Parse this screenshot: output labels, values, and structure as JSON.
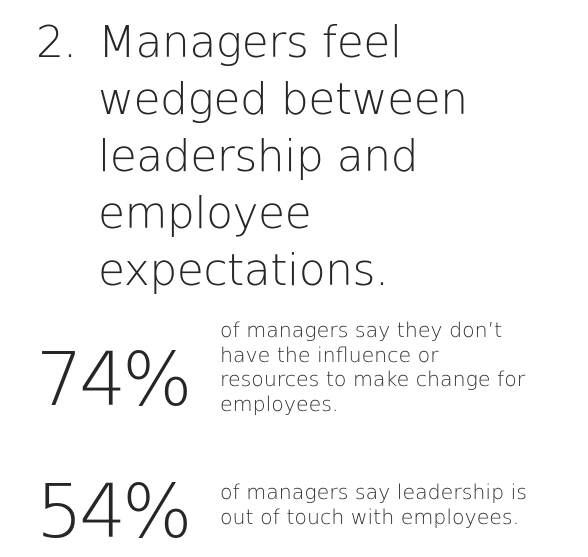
{
  "heading": {
    "number": "2.",
    "lines": [
      "Managers feel",
      "wedged between",
      "leadership and",
      "employee",
      "expectations."
    ]
  },
  "stats": [
    {
      "value": "74%",
      "description_lines": [
        "of managers say they don’t",
        "have the influence or",
        "resources to make change for",
        "employees."
      ]
    },
    {
      "value": "54%",
      "description_lines": [
        "of managers say leadership is",
        "out of touch with employees."
      ]
    }
  ]
}
